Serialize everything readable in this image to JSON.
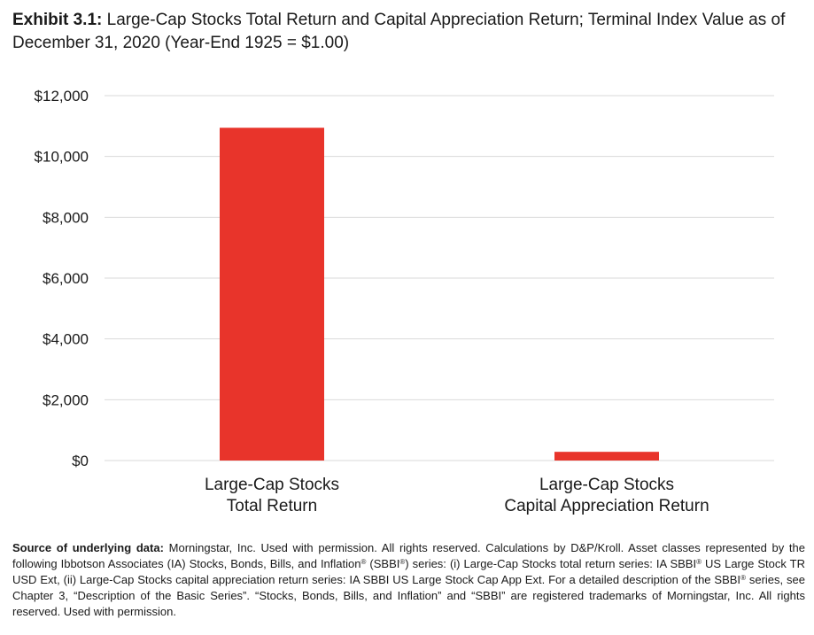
{
  "header": {
    "exhibit": "Exhibit 3.1:",
    "title": "Large-Cap Stocks Total Return and Capital Appreciation Return; Terminal Index Value as of December 31, 2020 (Year-End 1925 = $1.00)"
  },
  "chart_data": {
    "type": "bar",
    "categories": [
      [
        "Large-Cap Stocks",
        "Total Return"
      ],
      [
        "Large-Cap Stocks",
        "Capital Appreciation Return"
      ]
    ],
    "values": [
      10944,
      286
    ],
    "ylim": [
      0,
      12000
    ],
    "yticks": [
      0,
      2000,
      4000,
      6000,
      8000,
      10000,
      12000
    ],
    "ytick_labels": [
      "$0",
      "$2,000",
      "$4,000",
      "$6,000",
      "$8,000",
      "$10,000",
      "$12,000"
    ],
    "bar_color": "#e8342b",
    "grid": true,
    "grid_color": "#d9d9d9",
    "legend": "none"
  },
  "footer": {
    "source_label": "Source of underlying data:",
    "s1": " Morningstar, Inc. Used with permission. All rights reserved. Calculations by D&P/Kroll. Asset classes represented by the following Ibbotson Associates (IA) Stocks, Bonds, Bills, and Inflation",
    "reg": "®",
    "s2": " (SBBI",
    "s3": ") series: (i) Large-Cap Stocks total return series: IA SBBI",
    "s4": " US Large Stock TR USD Ext, (ii) Large-Cap Stocks capital appreciation return series: IA SBBI US Large Stock Cap App Ext. For a detailed description of the SBBI",
    "s5": " series, see Chapter 3, “Description of the Basic Series”. “Stocks, Bonds, Bills, and Inflation” and “SBBI” are registered trademarks of Morningstar, Inc. All rights reserved. Used with permission."
  }
}
